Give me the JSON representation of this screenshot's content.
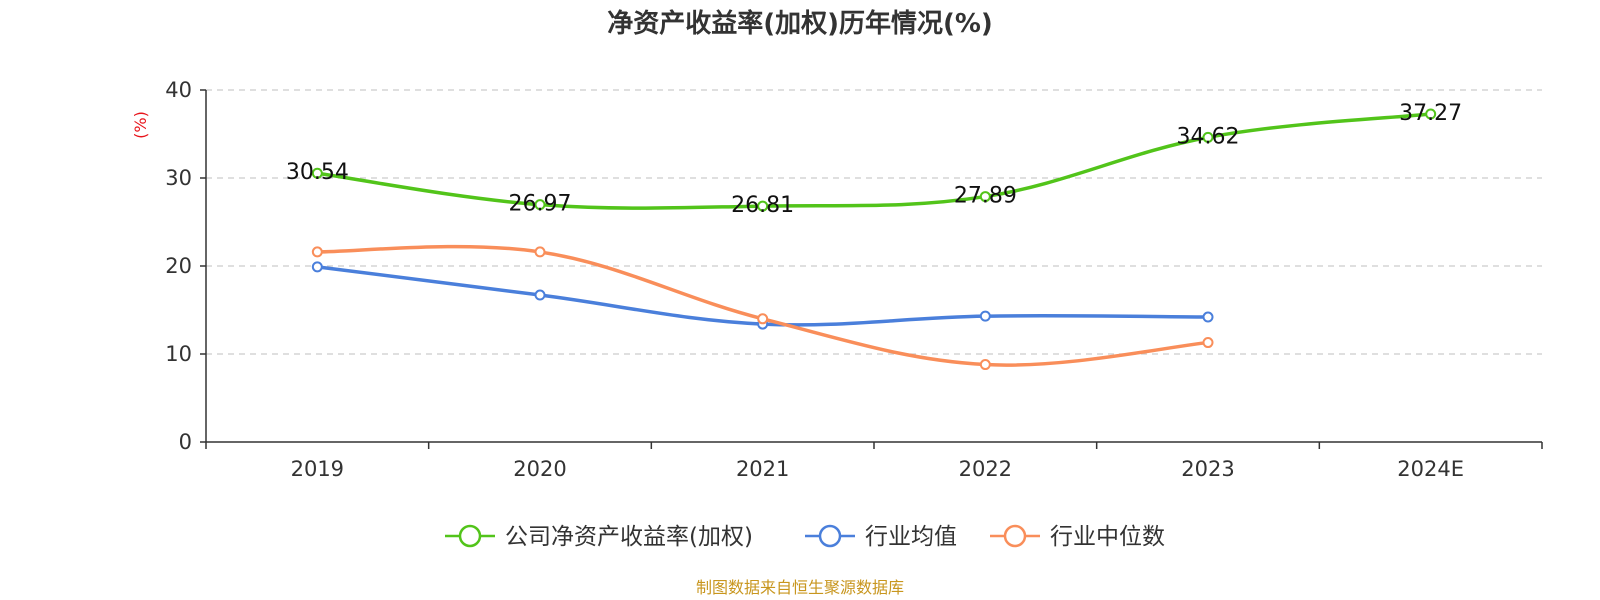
{
  "chart_data": {
    "type": "line",
    "title": "净资产收益率(加权)历年情况(%)",
    "ylabel": "(%)",
    "xlabel": "",
    "ylim": [
      0,
      40
    ],
    "yticks": [
      "0",
      "10",
      "20",
      "30",
      "40"
    ],
    "categories": [
      "2019",
      "2020",
      "2021",
      "2022",
      "2023",
      "2024E"
    ],
    "grid": true,
    "legend_position": "bottom-center",
    "series": [
      {
        "name": "公司净资产收益率(加权)",
        "color": "#52c41a",
        "values": [
          30.54,
          26.97,
          26.81,
          27.89,
          34.62,
          37.27
        ],
        "labels": [
          "30.54",
          "26.97",
          "26.81",
          "27.89",
          "34.62",
          "37.27"
        ]
      },
      {
        "name": "行业均值",
        "color": "#4a7fdb",
        "values": [
          19.9,
          16.7,
          13.4,
          14.3,
          14.2,
          null
        ]
      },
      {
        "name": "行业中位数",
        "color": "#f98e5a",
        "values": [
          21.6,
          21.6,
          14.0,
          8.8,
          11.3,
          null
        ]
      }
    ],
    "source": "制图数据来自恒生聚源数据库",
    "unit_color": "#e8141b",
    "source_color": "#c8961e"
  }
}
